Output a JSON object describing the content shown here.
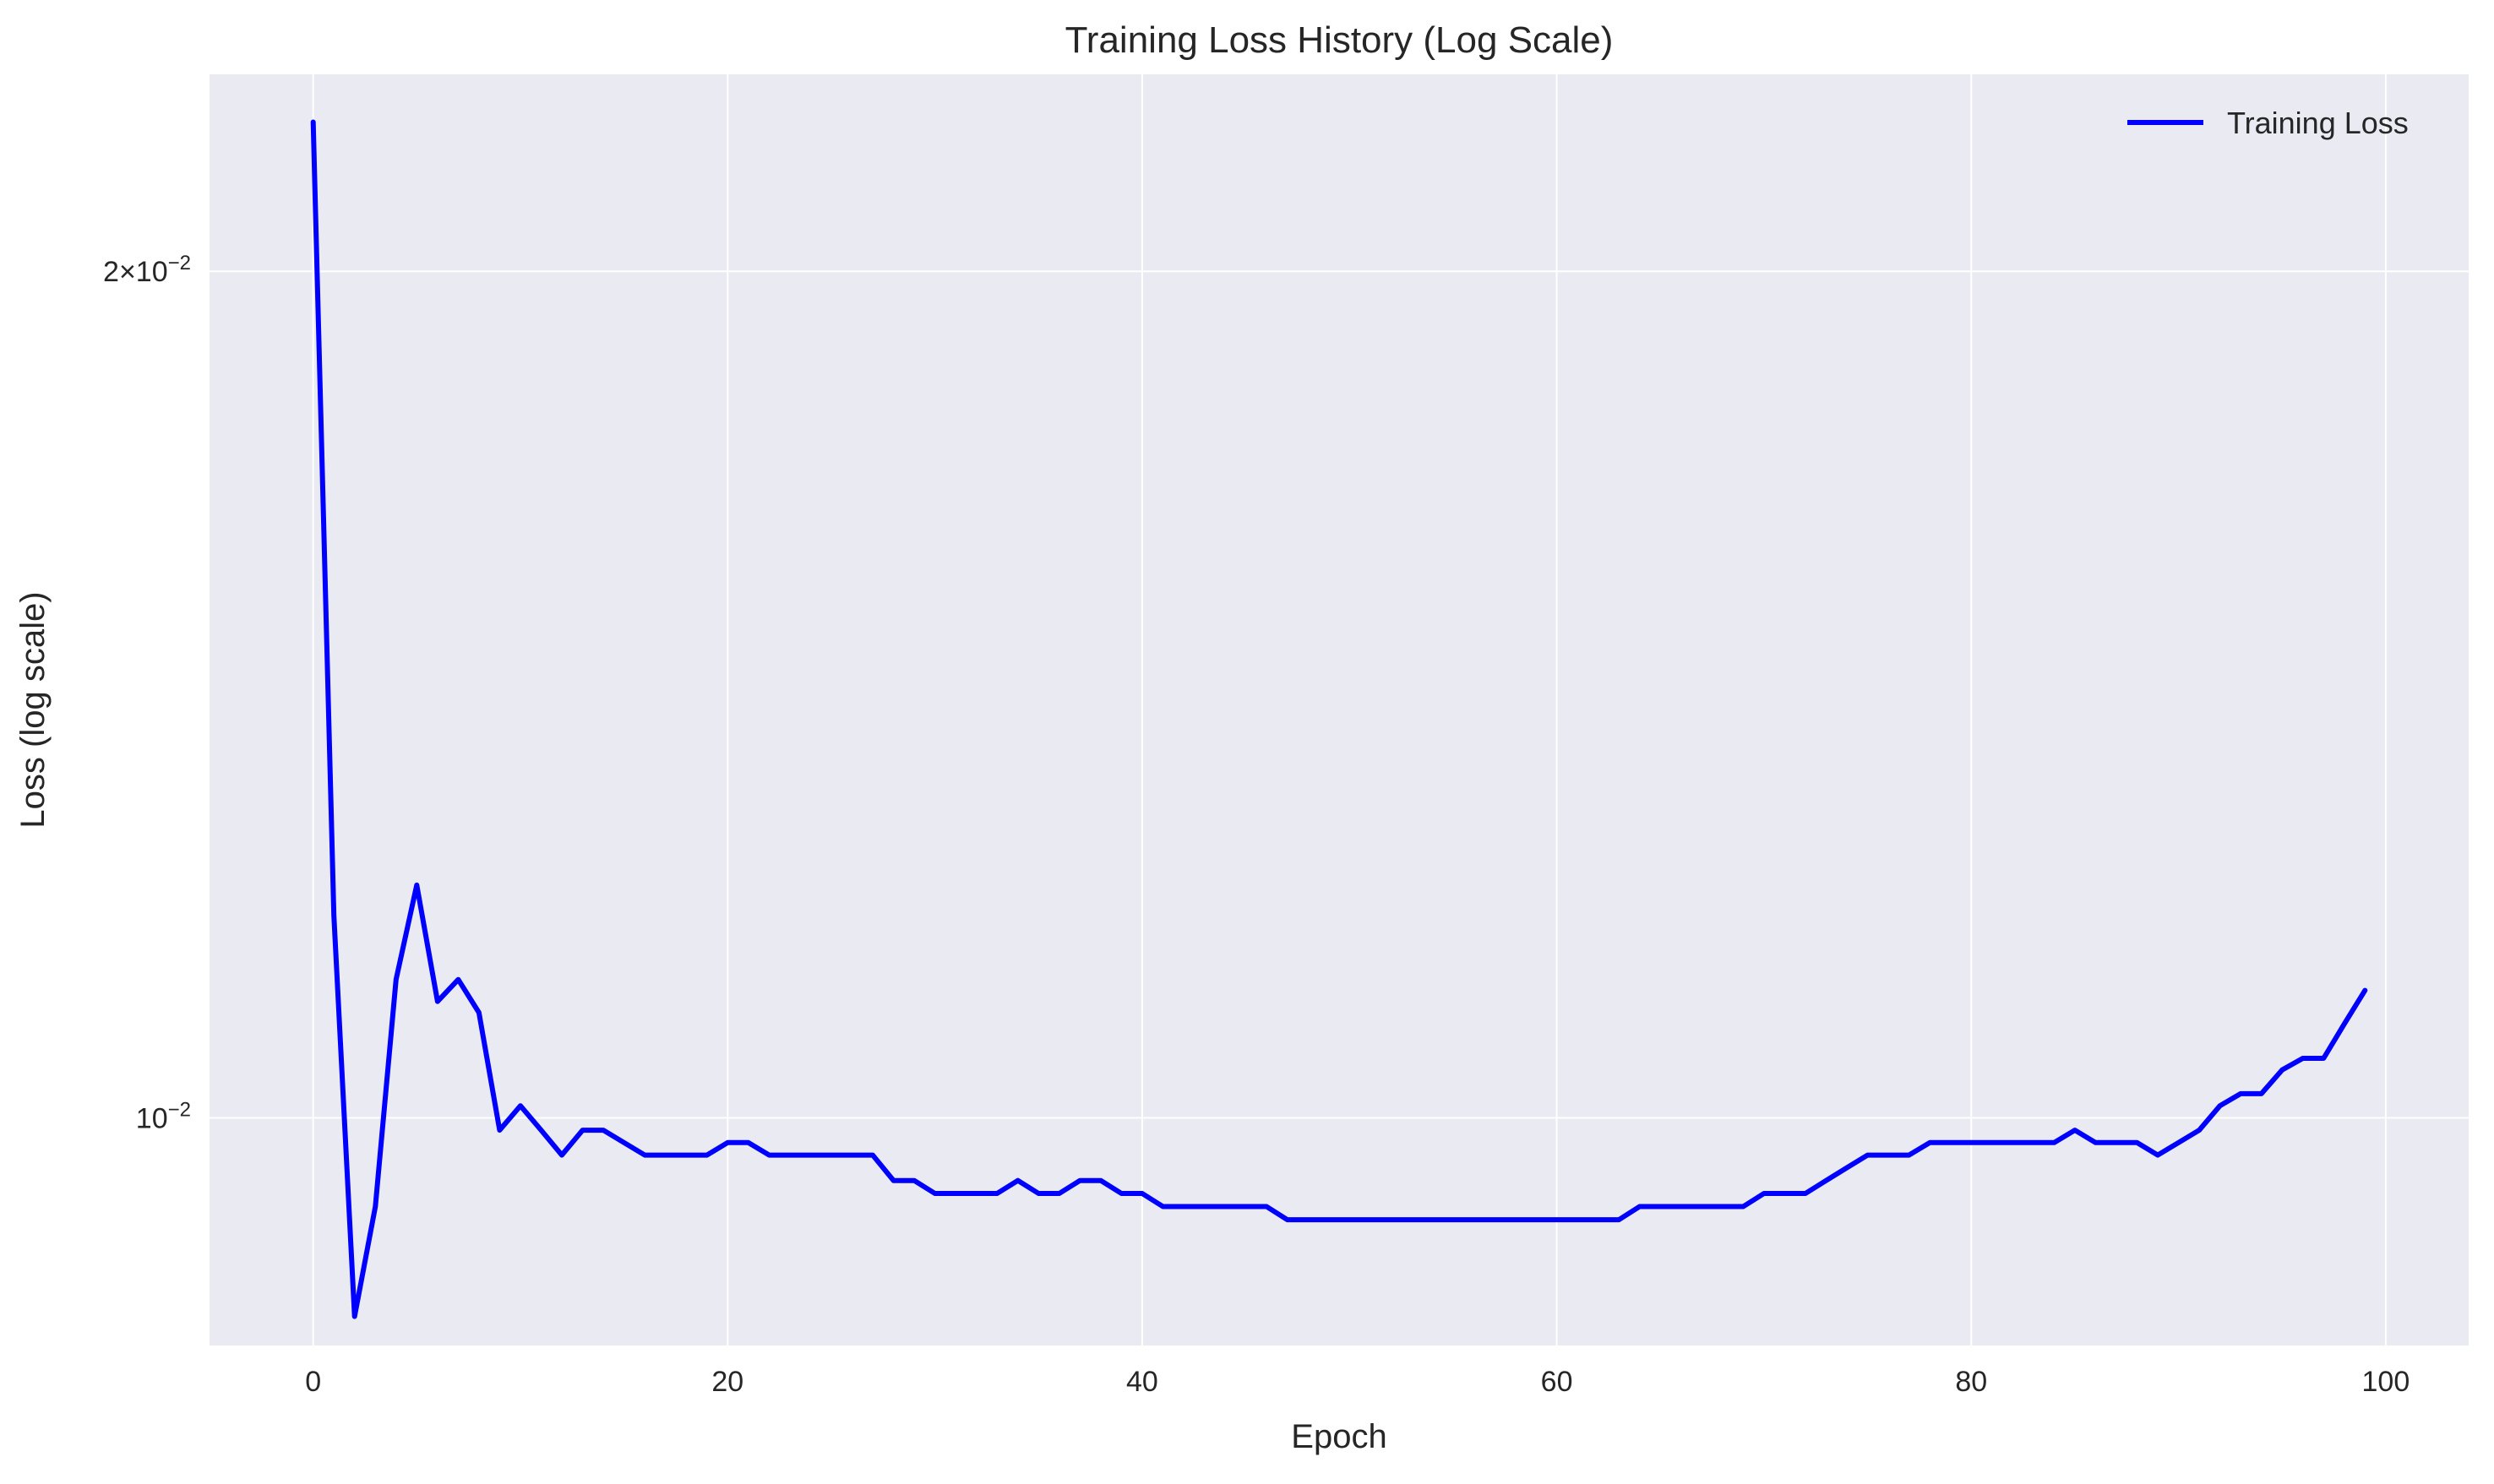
{
  "chart_data": {
    "type": "line",
    "title": "Training Loss History (Log Scale)",
    "xlabel": "Epoch",
    "ylabel": "Loss (log scale)",
    "yscale": "log",
    "xlim": [
      -5,
      104
    ],
    "ylim": [
      0.0083,
      0.0235
    ],
    "x_ticks": [
      0,
      20,
      40,
      60,
      80,
      100
    ],
    "x_tick_labels": [
      "0",
      "20",
      "40",
      "60",
      "80",
      "100"
    ],
    "y_ticks": [
      {
        "value": 0.02,
        "mantissa": "2",
        "exponent": "−2"
      },
      {
        "value": 0.01,
        "mantissa": "",
        "exponent": "−2"
      }
    ],
    "grid": true,
    "legend_position": "top-right",
    "colors": {
      "background": "#eaeaf2",
      "grid": "#ffffff",
      "series": "#0000ff"
    },
    "series": [
      {
        "name": "Training Loss",
        "x": [
          0,
          1,
          2,
          3,
          4,
          5,
          6,
          7,
          8,
          9,
          10,
          11,
          12,
          13,
          14,
          15,
          16,
          17,
          18,
          19,
          20,
          21,
          22,
          23,
          24,
          25,
          26,
          27,
          28,
          29,
          30,
          31,
          32,
          33,
          34,
          35,
          36,
          37,
          38,
          39,
          40,
          41,
          42,
          43,
          44,
          45,
          46,
          47,
          48,
          49,
          50,
          51,
          52,
          53,
          54,
          55,
          56,
          57,
          58,
          59,
          60,
          61,
          62,
          63,
          64,
          65,
          66,
          67,
          68,
          69,
          70,
          71,
          72,
          73,
          74,
          75,
          76,
          77,
          78,
          79,
          80,
          81,
          82,
          83,
          84,
          85,
          86,
          87,
          88,
          89,
          90,
          91,
          92,
          93,
          94,
          95,
          96,
          97,
          98,
          99
        ],
        "values": [
          0.0226,
          0.0118,
          0.0085,
          0.0093,
          0.0112,
          0.0121,
          0.011,
          0.0112,
          0.0109,
          0.0099,
          0.0101,
          0.0099,
          0.0097,
          0.0099,
          0.0099,
          0.0098,
          0.0097,
          0.0097,
          0.0097,
          0.0097,
          0.0098,
          0.0098,
          0.0097,
          0.0097,
          0.0097,
          0.0097,
          0.0097,
          0.0097,
          0.0095,
          0.0095,
          0.0094,
          0.0094,
          0.0094,
          0.0094,
          0.0095,
          0.0094,
          0.0094,
          0.0095,
          0.0095,
          0.0094,
          0.0094,
          0.0093,
          0.0093,
          0.0093,
          0.0093,
          0.0093,
          0.0093,
          0.0092,
          0.0092,
          0.0092,
          0.0092,
          0.0092,
          0.0092,
          0.0092,
          0.0092,
          0.0092,
          0.0092,
          0.0092,
          0.0092,
          0.0092,
          0.0092,
          0.0092,
          0.0092,
          0.0092,
          0.0093,
          0.0093,
          0.0093,
          0.0093,
          0.0093,
          0.0093,
          0.0094,
          0.0094,
          0.0094,
          0.0095,
          0.0096,
          0.0097,
          0.0097,
          0.0097,
          0.0098,
          0.0098,
          0.0098,
          0.0098,
          0.0098,
          0.0098,
          0.0098,
          0.0099,
          0.0098,
          0.0098,
          0.0098,
          0.0097,
          0.0098,
          0.0099,
          0.0101,
          0.0102,
          0.0102,
          0.0104,
          0.0105,
          0.0105,
          0.0108,
          0.0111
        ]
      }
    ]
  }
}
